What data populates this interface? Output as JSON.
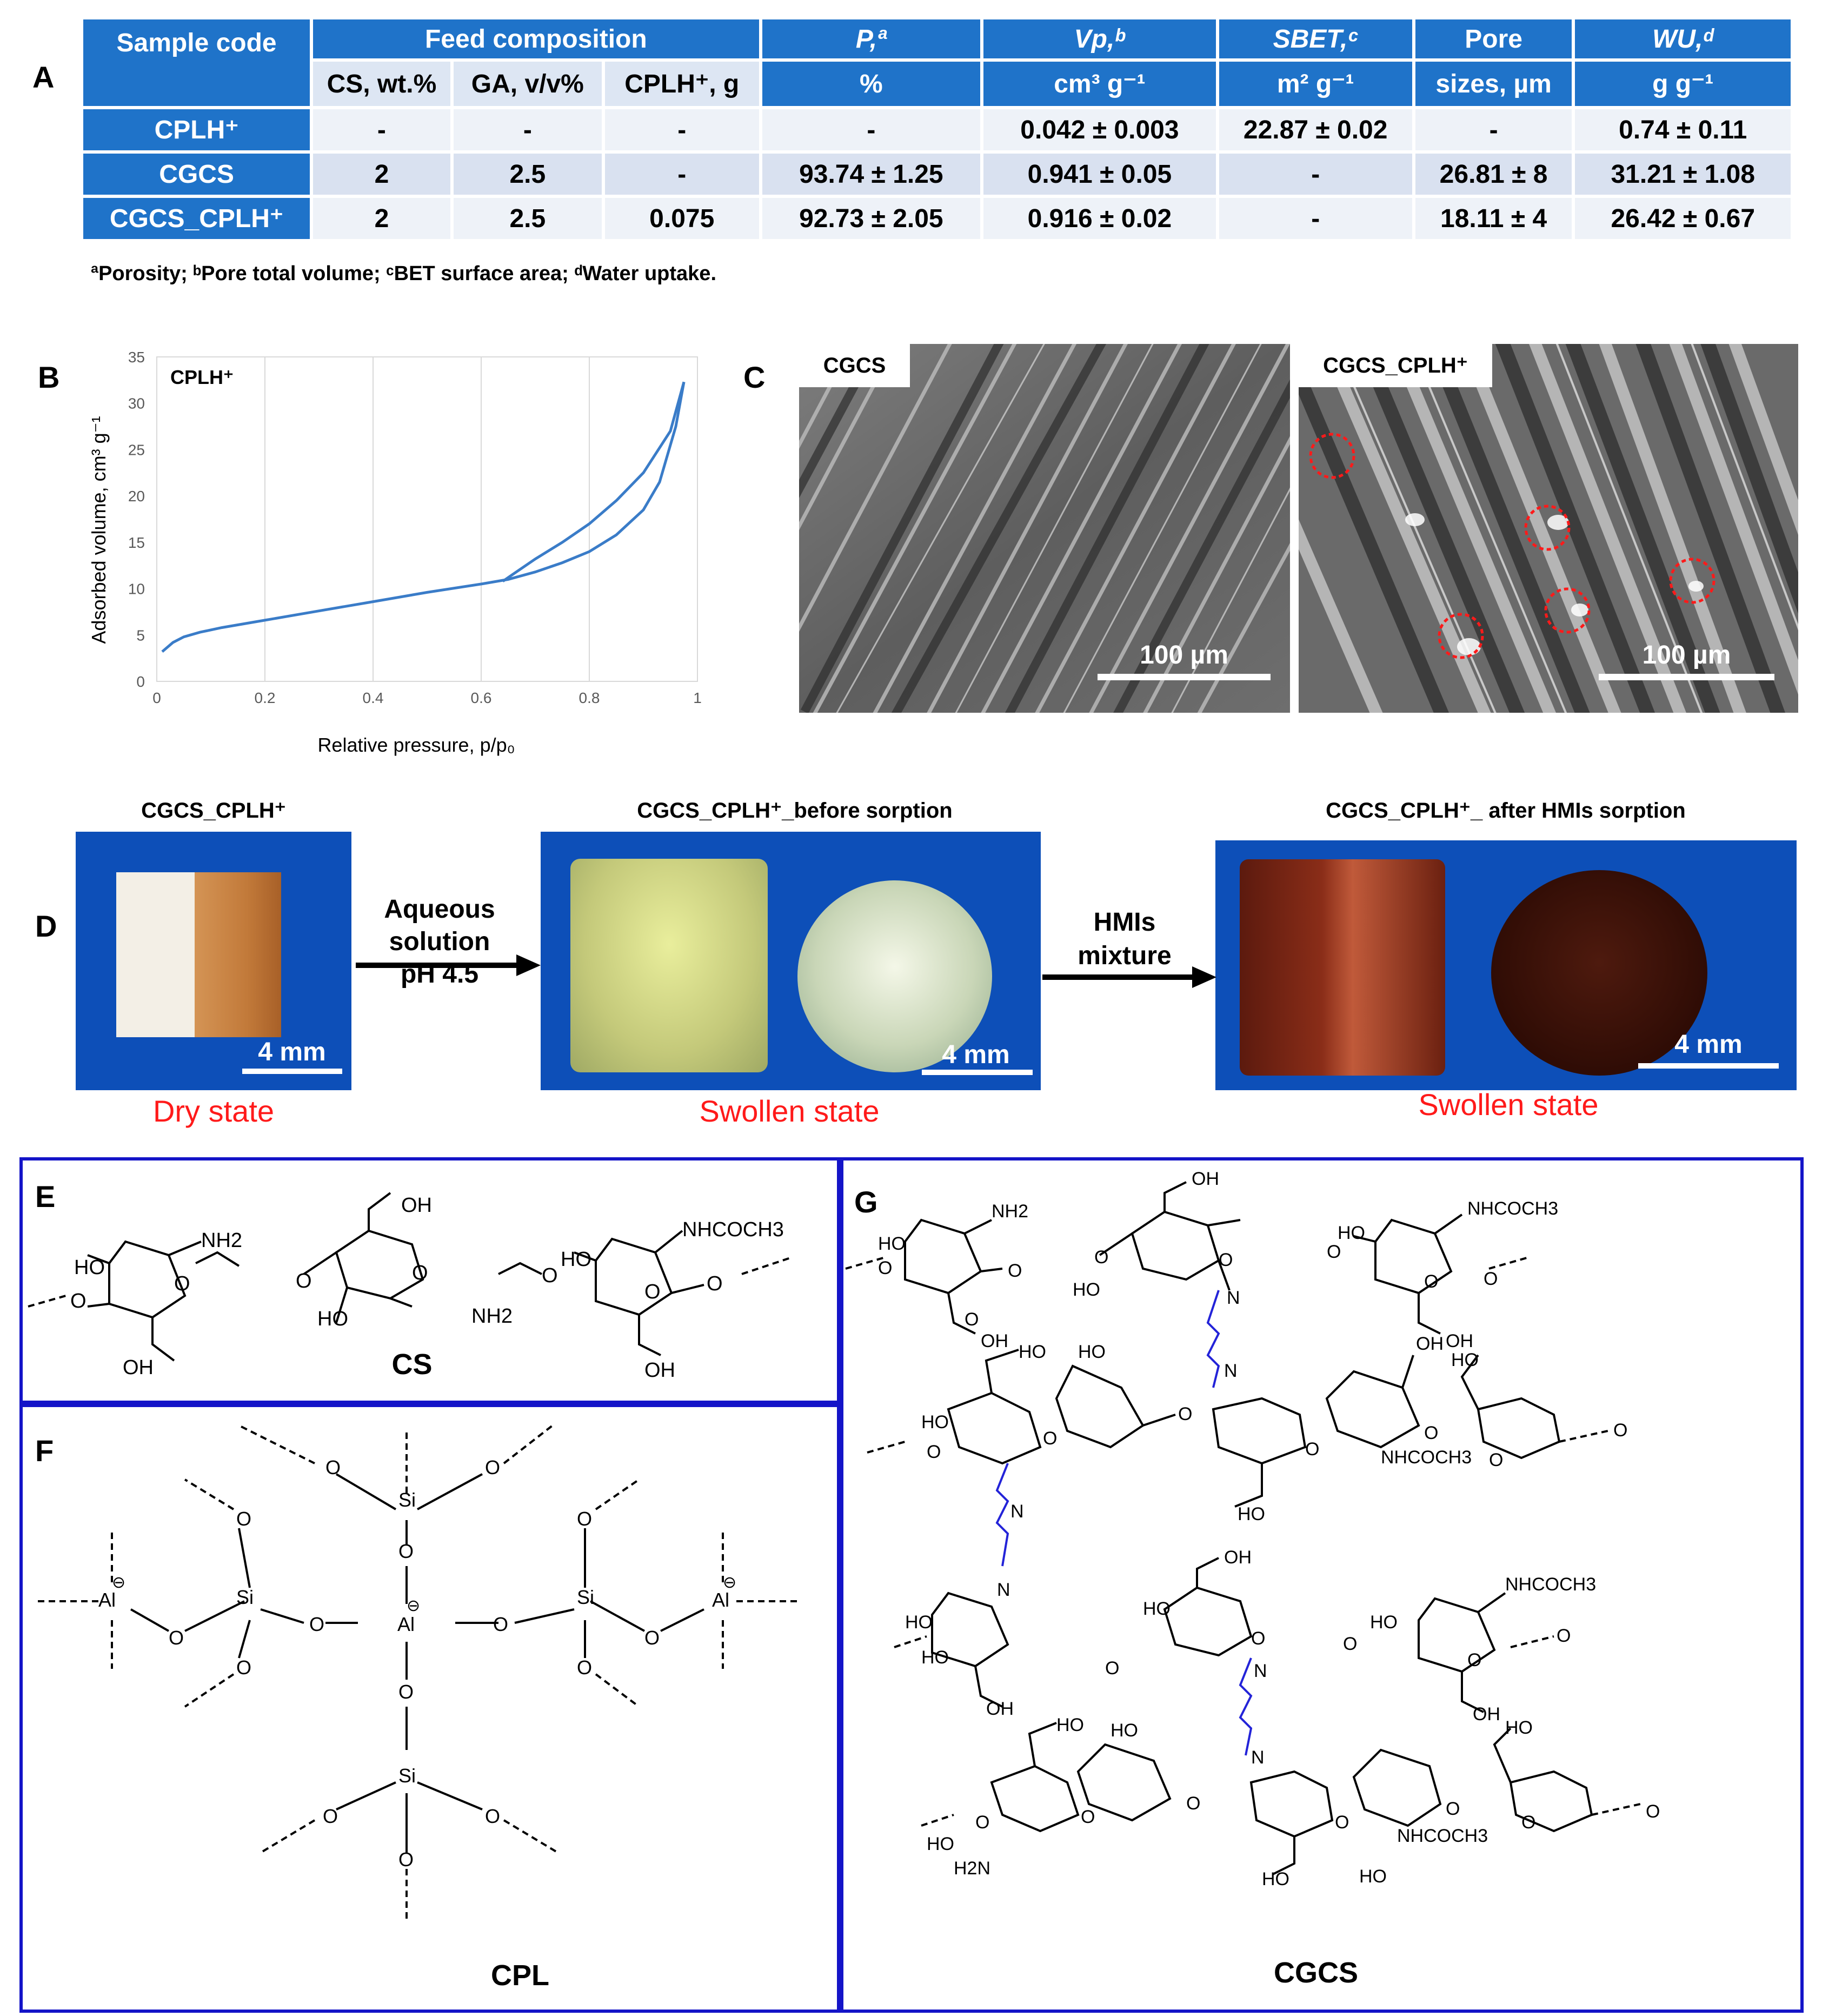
{
  "panels": {
    "A": "A",
    "B": "B",
    "C": "C",
    "D": "D",
    "E": "E",
    "F": "F",
    "G": "G"
  },
  "table": {
    "header": {
      "sample_code": "Sample code",
      "feed_composition": "Feed composition",
      "cs": "CS, wt.%",
      "ga": "GA, v/v%",
      "cplh": "CPLH⁺, g",
      "p_sym": "P,ª",
      "p_unit": "%",
      "vp_sym": "Vp,ᵇ",
      "vp_unit": "cm³ g⁻¹",
      "sbet_sym": "SBET,ᶜ",
      "sbet_unit": "m² g⁻¹",
      "pore_1": "Pore",
      "pore_2": "sizes, µm",
      "wu_sym": "WU,ᵈ",
      "wu_unit": "g g⁻¹"
    },
    "rows": [
      [
        "CPLH⁺",
        "-",
        "-",
        "-",
        "-",
        "0.042 ± 0.003",
        "22.87 ± 0.02",
        "-",
        "0.74 ± 0.11"
      ],
      [
        "CGCS",
        "2",
        "2.5",
        "-",
        "93.74 ± 1.25",
        "0.941 ± 0.05",
        "-",
        "26.81 ± 8",
        "31.21 ± 1.08"
      ],
      [
        "CGCS_CPLH⁺",
        "2",
        "2.5",
        "0.075",
        "92.73 ± 2.05",
        "0.916 ± 0.02",
        "-",
        "18.11 ± 4",
        "26.42 ± 0.67"
      ]
    ],
    "footnote": "ªPorosity; ᵇPore total volume; ᶜBET surface area; ᵈWater uptake."
  },
  "chart_data": {
    "type": "line",
    "title": "CPLH⁺",
    "xlabel": "Relative pressure, p/p₀",
    "ylabel": "Adsorbed volume, cm³ g⁻¹",
    "xlim": [
      0,
      1
    ],
    "ylim": [
      0,
      35
    ],
    "x_ticks": [
      "0",
      "0.2",
      "0.4",
      "0.6",
      "0.8",
      "1"
    ],
    "y_ticks": [
      "0",
      "5",
      "10",
      "15",
      "20",
      "25",
      "30",
      "35"
    ],
    "grid": "vertical",
    "series": [
      {
        "name": "adsorption",
        "x": [
          0.01,
          0.03,
          0.05,
          0.08,
          0.12,
          0.2,
          0.3,
          0.4,
          0.5,
          0.6,
          0.65,
          0.7,
          0.75,
          0.8,
          0.85,
          0.9,
          0.93,
          0.96,
          0.975
        ],
        "y": [
          3.2,
          4.2,
          4.8,
          5.3,
          5.8,
          6.6,
          7.6,
          8.6,
          9.6,
          10.5,
          11.0,
          11.8,
          12.8,
          14.0,
          15.8,
          18.5,
          21.5,
          27.5,
          32.3
        ]
      },
      {
        "name": "desorption",
        "x": [
          0.975,
          0.95,
          0.9,
          0.85,
          0.8,
          0.75,
          0.7,
          0.66,
          0.64
        ],
        "y": [
          32.3,
          27.0,
          22.5,
          19.5,
          17.0,
          15.0,
          13.2,
          11.6,
          10.8
        ]
      }
    ]
  },
  "sem": {
    "left_label": "CGCS",
    "right_label": "CGCS_CPLH⁺",
    "scale_left": "100 µm",
    "scale_right": "100 µm"
  },
  "photos": {
    "cap1": "CGCS_CPLH⁺",
    "cap2": "CGCS_CPLH⁺_before sorption",
    "cap3": "CGCS_CPLH⁺_ after HMIs sorption",
    "arrow1_l1": "Aqueous",
    "arrow1_l2": "solution",
    "arrow1_l3": "pH 4.5",
    "arrow2_l1": "HMIs",
    "arrow2_l2": "mixture",
    "scale1": "4 mm",
    "scale2": "4 mm",
    "scale3": "4 mm",
    "state1": "Dry state",
    "state2": "Swollen state",
    "state3": "Swollen state"
  },
  "chem": {
    "cs_name": "CS",
    "cpl_name": "CPL",
    "cgcs_name": "CGCS",
    "oh": "OH",
    "ho": "HO",
    "nh2": "NH2",
    "h2n": "H2N",
    "nhcoch3": "NHCOCH3",
    "o": "O",
    "n": "N",
    "si": "Si",
    "al": "Al",
    "minus": "⊖"
  },
  "colors": {
    "table_header": "#1f73c9",
    "frame_blue": "#1414c8",
    "curve": "#3a7cc8",
    "red": "#ff1a1a",
    "linker": "#2323d8"
  }
}
